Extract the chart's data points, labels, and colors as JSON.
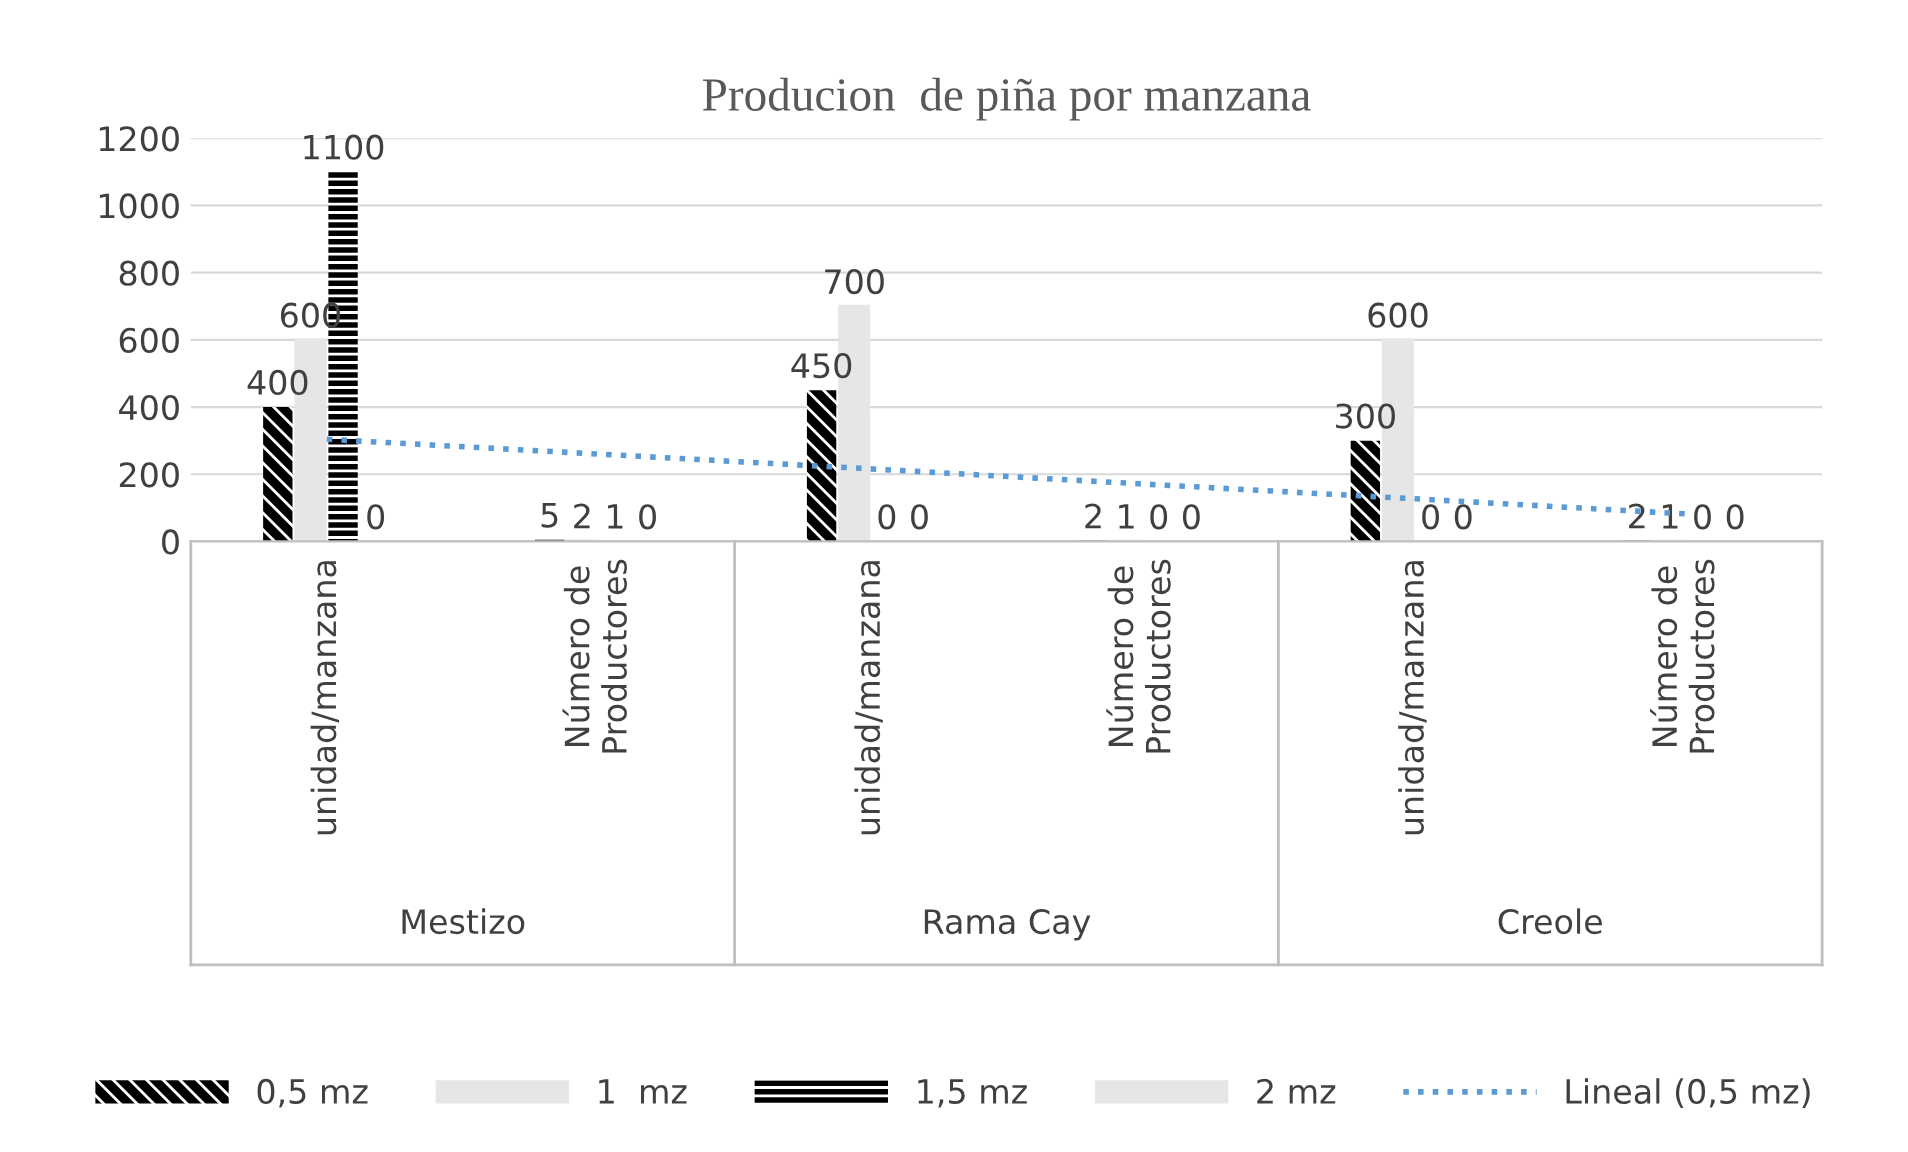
{
  "chart_data": {
    "type": "bar",
    "title": "Producion  de piña por manzana",
    "categories": [
      "unidad/manzana",
      "Número de\nProductores",
      "unidad/manzana",
      "Número de\nProductores",
      "unidad/manzana",
      "Número de\nProductores"
    ],
    "annotations": [
      "Mestizo",
      "Rama Cay",
      "Creole"
    ],
    "series": [
      {
        "name": "0,5 mz",
        "color": "#000000",
        "values": [
          400,
          5,
          450,
          2,
          300,
          2
        ],
        "value_labels": [
          "400",
          "5",
          "450",
          "2",
          "300",
          "2"
        ]
      },
      {
        "name": "1  mz",
        "color": "#e7e6e6",
        "values": [
          600,
          2,
          700,
          1,
          600,
          1
        ],
        "value_labels": [
          "600",
          "2",
          "700",
          "1",
          "600",
          "1"
        ]
      },
      {
        "name": "1,5 mz",
        "color": "#000000",
        "values": [
          1100,
          1,
          0,
          0,
          0,
          0
        ],
        "value_labels": [
          "1100",
          "1",
          "0",
          "0",
          "0",
          "0"
        ]
      },
      {
        "name": "2 mz",
        "color": "#e7e6e6",
        "values": [
          0,
          0,
          0,
          0,
          0,
          0
        ],
        "value_labels": [
          "0",
          "0",
          "0",
          "0",
          "0",
          "0"
        ]
      },
      {
        "name": "Lineal (0,5 mz)",
        "type": "line",
        "color": "#5b9bd5",
        "line_style": "dotted",
        "values": [
          304,
          260,
          216,
          171,
          127,
          82
        ]
      }
    ],
    "ylim": [
      0,
      1200
    ],
    "yticks": [
      0,
      200,
      400,
      600,
      800,
      1000,
      1200
    ],
    "grid": "y",
    "legend": "bottom"
  }
}
